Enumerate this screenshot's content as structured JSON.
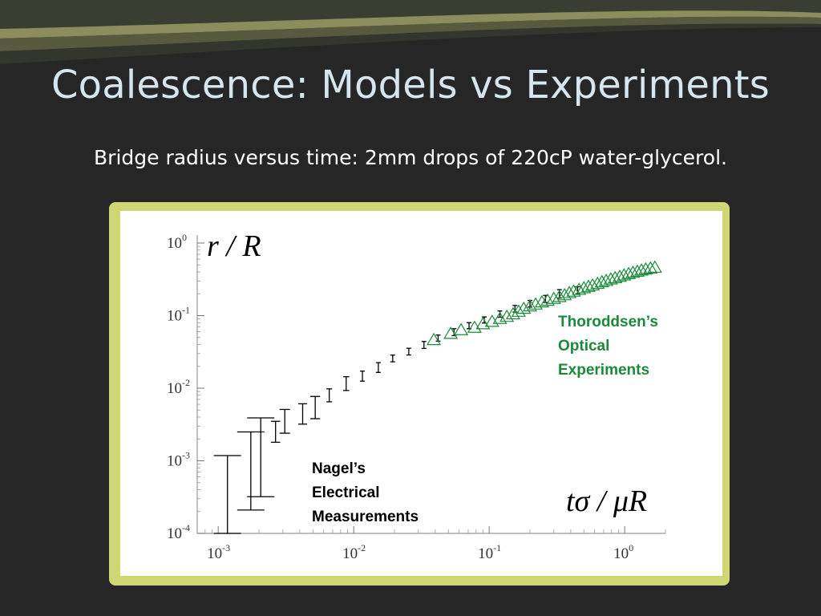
{
  "slide": {
    "title": "Coalescence: Models vs Experiments",
    "subtitle": "Bridge radius versus time:  2mm drops of 220cP water-glycerol."
  },
  "colors": {
    "background": "#262626",
    "frame": "#cfd775",
    "nagel": "#000000",
    "thoroddsen": "#1a8a3a"
  },
  "chart_data": {
    "type": "scatter",
    "x_scale": "log",
    "y_scale": "log",
    "xlim": [
      0.0007,
      2.0
    ],
    "ylim": [
      0.0001,
      1.0
    ],
    "xlabel": "tσ / μR",
    "ylabel": "r / R",
    "x_ticks": [
      {
        "value": 0.001,
        "base": "10",
        "exp": "-3"
      },
      {
        "value": 0.01,
        "base": "10",
        "exp": "-2"
      },
      {
        "value": 0.1,
        "base": "10",
        "exp": "-1"
      },
      {
        "value": 1,
        "base": "10",
        "exp": "0"
      }
    ],
    "y_ticks": [
      {
        "value": 0.0001,
        "base": "10",
        "exp": "-4"
      },
      {
        "value": 0.001,
        "base": "10",
        "exp": "-3"
      },
      {
        "value": 0.01,
        "base": "10",
        "exp": "-2"
      },
      {
        "value": 0.1,
        "base": "10",
        "exp": "-1"
      },
      {
        "value": 1,
        "base": "10",
        "exp": "0"
      }
    ],
    "annotations": {
      "nagel": "Nagel’s\nElectrical\nMeasurements",
      "thoroddsen": "Thoroddsen’s\nOptical\nExperiments"
    },
    "series": [
      {
        "marker": "errorbar",
        "color": "#000000",
        "points": [
          {
            "x": 0.00117,
            "y": 0.00035,
            "lo": 0.0001,
            "hi": 0.00118
          },
          {
            "x": 0.00174,
            "y": 0.00063,
            "lo": 0.00021,
            "hi": 0.0025
          },
          {
            "x": 0.00206,
            "y": 0.0011,
            "lo": 0.00032,
            "hi": 0.0039
          },
          {
            "x": 0.00265,
            "y": 0.0025,
            "lo": 0.0018,
            "hi": 0.0035
          },
          {
            "x": 0.0031,
            "y": 0.0035,
            "lo": 0.0024,
            "hi": 0.0051
          },
          {
            "x": 0.0042,
            "y": 0.0046,
            "lo": 0.0032,
            "hi": 0.0061
          },
          {
            "x": 0.0052,
            "y": 0.0054,
            "lo": 0.0038,
            "hi": 0.0077
          },
          {
            "x": 0.0066,
            "y": 0.0079,
            "lo": 0.0065,
            "hi": 0.0098
          },
          {
            "x": 0.0088,
            "y": 0.0117,
            "lo": 0.0093,
            "hi": 0.0144
          },
          {
            "x": 0.0116,
            "y": 0.0145,
            "lo": 0.0125,
            "hi": 0.0172
          },
          {
            "x": 0.0152,
            "y": 0.0193,
            "lo": 0.0165,
            "hi": 0.0225
          },
          {
            "x": 0.0194,
            "y": 0.0257,
            "lo": 0.0231,
            "hi": 0.0286
          },
          {
            "x": 0.0255,
            "y": 0.0318,
            "lo": 0.0287,
            "hi": 0.0355
          },
          {
            "x": 0.033,
            "y": 0.0395,
            "lo": 0.0353,
            "hi": 0.044
          },
          {
            "x": 0.042,
            "y": 0.049,
            "lo": 0.0445,
            "hi": 0.054
          },
          {
            "x": 0.055,
            "y": 0.059,
            "lo": 0.053,
            "hi": 0.066
          },
          {
            "x": 0.071,
            "y": 0.073,
            "lo": 0.066,
            "hi": 0.08
          },
          {
            "x": 0.092,
            "y": 0.087,
            "lo": 0.079,
            "hi": 0.096
          },
          {
            "x": 0.12,
            "y": 0.105,
            "lo": 0.095,
            "hi": 0.116
          },
          {
            "x": 0.155,
            "y": 0.125,
            "lo": 0.112,
            "hi": 0.138
          },
          {
            "x": 0.2,
            "y": 0.146,
            "lo": 0.131,
            "hi": 0.162
          },
          {
            "x": 0.26,
            "y": 0.17,
            "lo": 0.152,
            "hi": 0.19
          },
          {
            "x": 0.33,
            "y": 0.199,
            "lo": 0.175,
            "hi": 0.228
          },
          {
            "x": 0.45,
            "y": 0.224,
            "lo": 0.2,
            "hi": 0.25
          }
        ]
      },
      {
        "marker": "triangle",
        "color": "#1a8a3a",
        "x": [
          0.039,
          0.052,
          0.062,
          0.078,
          0.09,
          0.105,
          0.12,
          0.135,
          0.15,
          0.165,
          0.18,
          0.2,
          0.22,
          0.245,
          0.27,
          0.3,
          0.33,
          0.36,
          0.39,
          0.42,
          0.46,
          0.5,
          0.54,
          0.58,
          0.63,
          0.68,
          0.73,
          0.79,
          0.85,
          0.92,
          0.99,
          1.07,
          1.15,
          1.24,
          1.33,
          1.43,
          1.55,
          1.67
        ],
        "y": [
          0.046,
          0.056,
          0.063,
          0.068,
          0.076,
          0.082,
          0.09,
          0.096,
          0.104,
          0.113,
          0.124,
          0.134,
          0.142,
          0.152,
          0.16,
          0.17,
          0.18,
          0.191,
          0.204,
          0.214,
          0.226,
          0.238,
          0.249,
          0.26,
          0.274,
          0.288,
          0.3,
          0.315,
          0.328,
          0.342,
          0.358,
          0.374,
          0.388,
          0.402,
          0.418,
          0.432,
          0.445,
          0.458
        ]
      }
    ]
  }
}
